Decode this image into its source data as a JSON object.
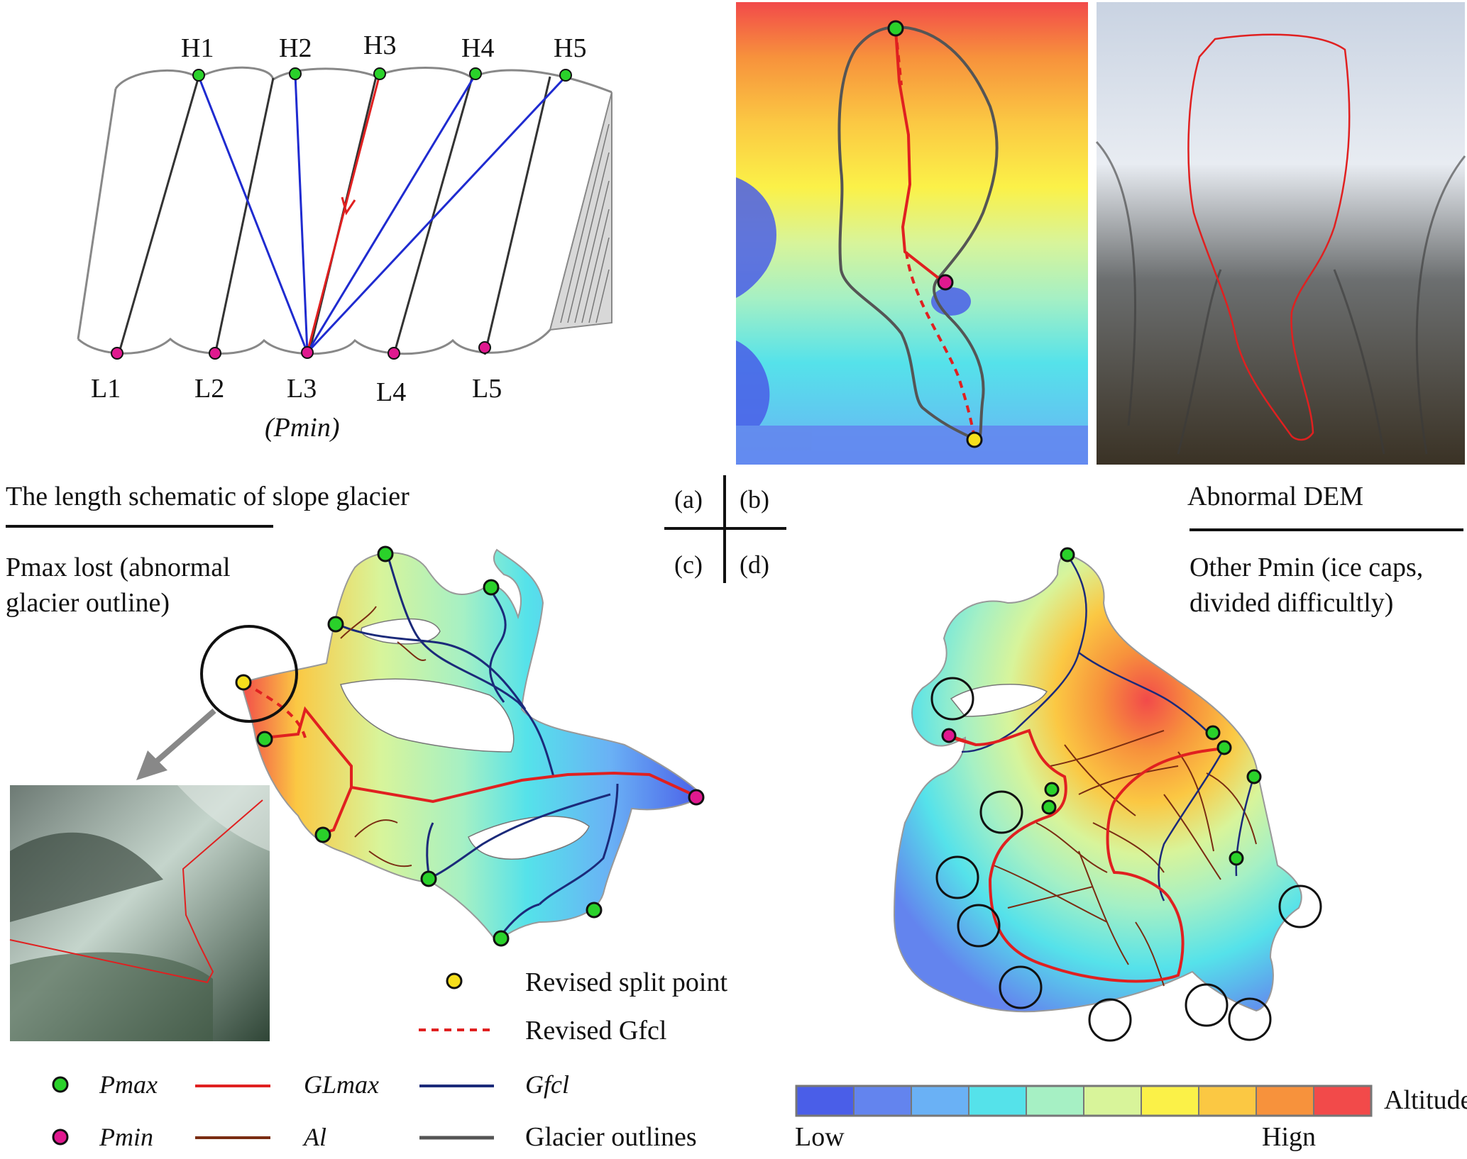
{
  "schematic": {
    "high_points": [
      "H1",
      "H2",
      "H3",
      "H4",
      "H5"
    ],
    "low_points": [
      "L1",
      "L2",
      "L3",
      "L4",
      "L5"
    ],
    "pmin_note": "(Pmin)",
    "caption": "The length schematic of slope glacier"
  },
  "panel_keys": {
    "a": "(a)",
    "b": "(b)",
    "c": "(c)",
    "d": "(d)"
  },
  "captions": {
    "b": "Abnormal DEM",
    "c_line1": "Pmax lost  (abnormal",
    "c_line2": "glacier outline)",
    "d_line1": "Other Pmin (ice caps,",
    "d_line2": "divided difficultly)"
  },
  "legend": {
    "revised_split": "Revised split point",
    "revised_gfcl": "Revised Gfcl",
    "pmax": "Pmax",
    "pmin": "Pmin",
    "glmax": "GLmax",
    "al": "Al",
    "gfcl": "Gfcl",
    "outlines": "Glacier outlines"
  },
  "colorbar": {
    "title": "Altitude",
    "low": "Low",
    "high": "Hign",
    "colors": [
      "#4a5ee8",
      "#6384ee",
      "#6ab1f5",
      "#55e2ea",
      "#a6f0c4",
      "#d8f49a",
      "#fbf148",
      "#fbc843",
      "#f7923c",
      "#f24a4a"
    ]
  },
  "colors": {
    "pmax": "#2ad12a",
    "pmin": "#e0198f",
    "split": "#f6df1c",
    "glmax": "#e02020",
    "gfcl": "#1b2a7a",
    "al": "#7a2d12",
    "outline": "#555555"
  }
}
